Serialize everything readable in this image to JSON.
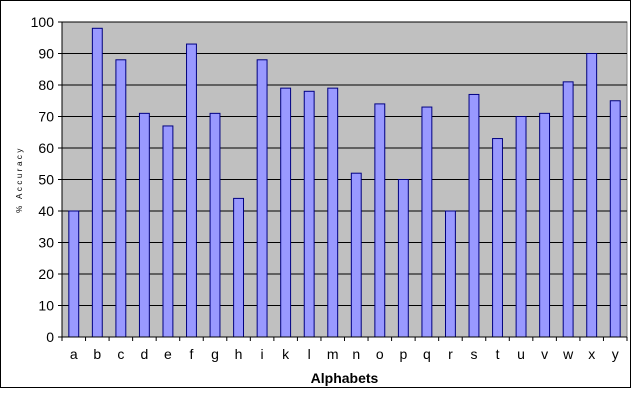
{
  "chart_data": {
    "type": "bar",
    "title": "",
    "xlabel": "Alphabets",
    "ylabel": "% Accuracy",
    "ylim": [
      0,
      100
    ],
    "ytick_step": 10,
    "grid": true,
    "legend": "none",
    "categories": [
      "a",
      "b",
      "c",
      "d",
      "e",
      "f",
      "g",
      "h",
      "i",
      "k",
      "l",
      "m",
      "n",
      "o",
      "p",
      "q",
      "r",
      "s",
      "t",
      "u",
      "v",
      "w",
      "x",
      "y"
    ],
    "values": [
      40,
      98,
      88,
      71,
      67,
      93,
      71,
      44,
      88,
      79,
      78,
      79,
      52,
      74,
      50,
      73,
      40,
      77,
      63,
      70,
      71,
      81,
      90,
      75
    ],
    "colors": {
      "bar_fill": "#9999ff",
      "bar_stroke": "#000080",
      "plot_background": "#c0c0c0",
      "gridline": "#000000"
    }
  }
}
